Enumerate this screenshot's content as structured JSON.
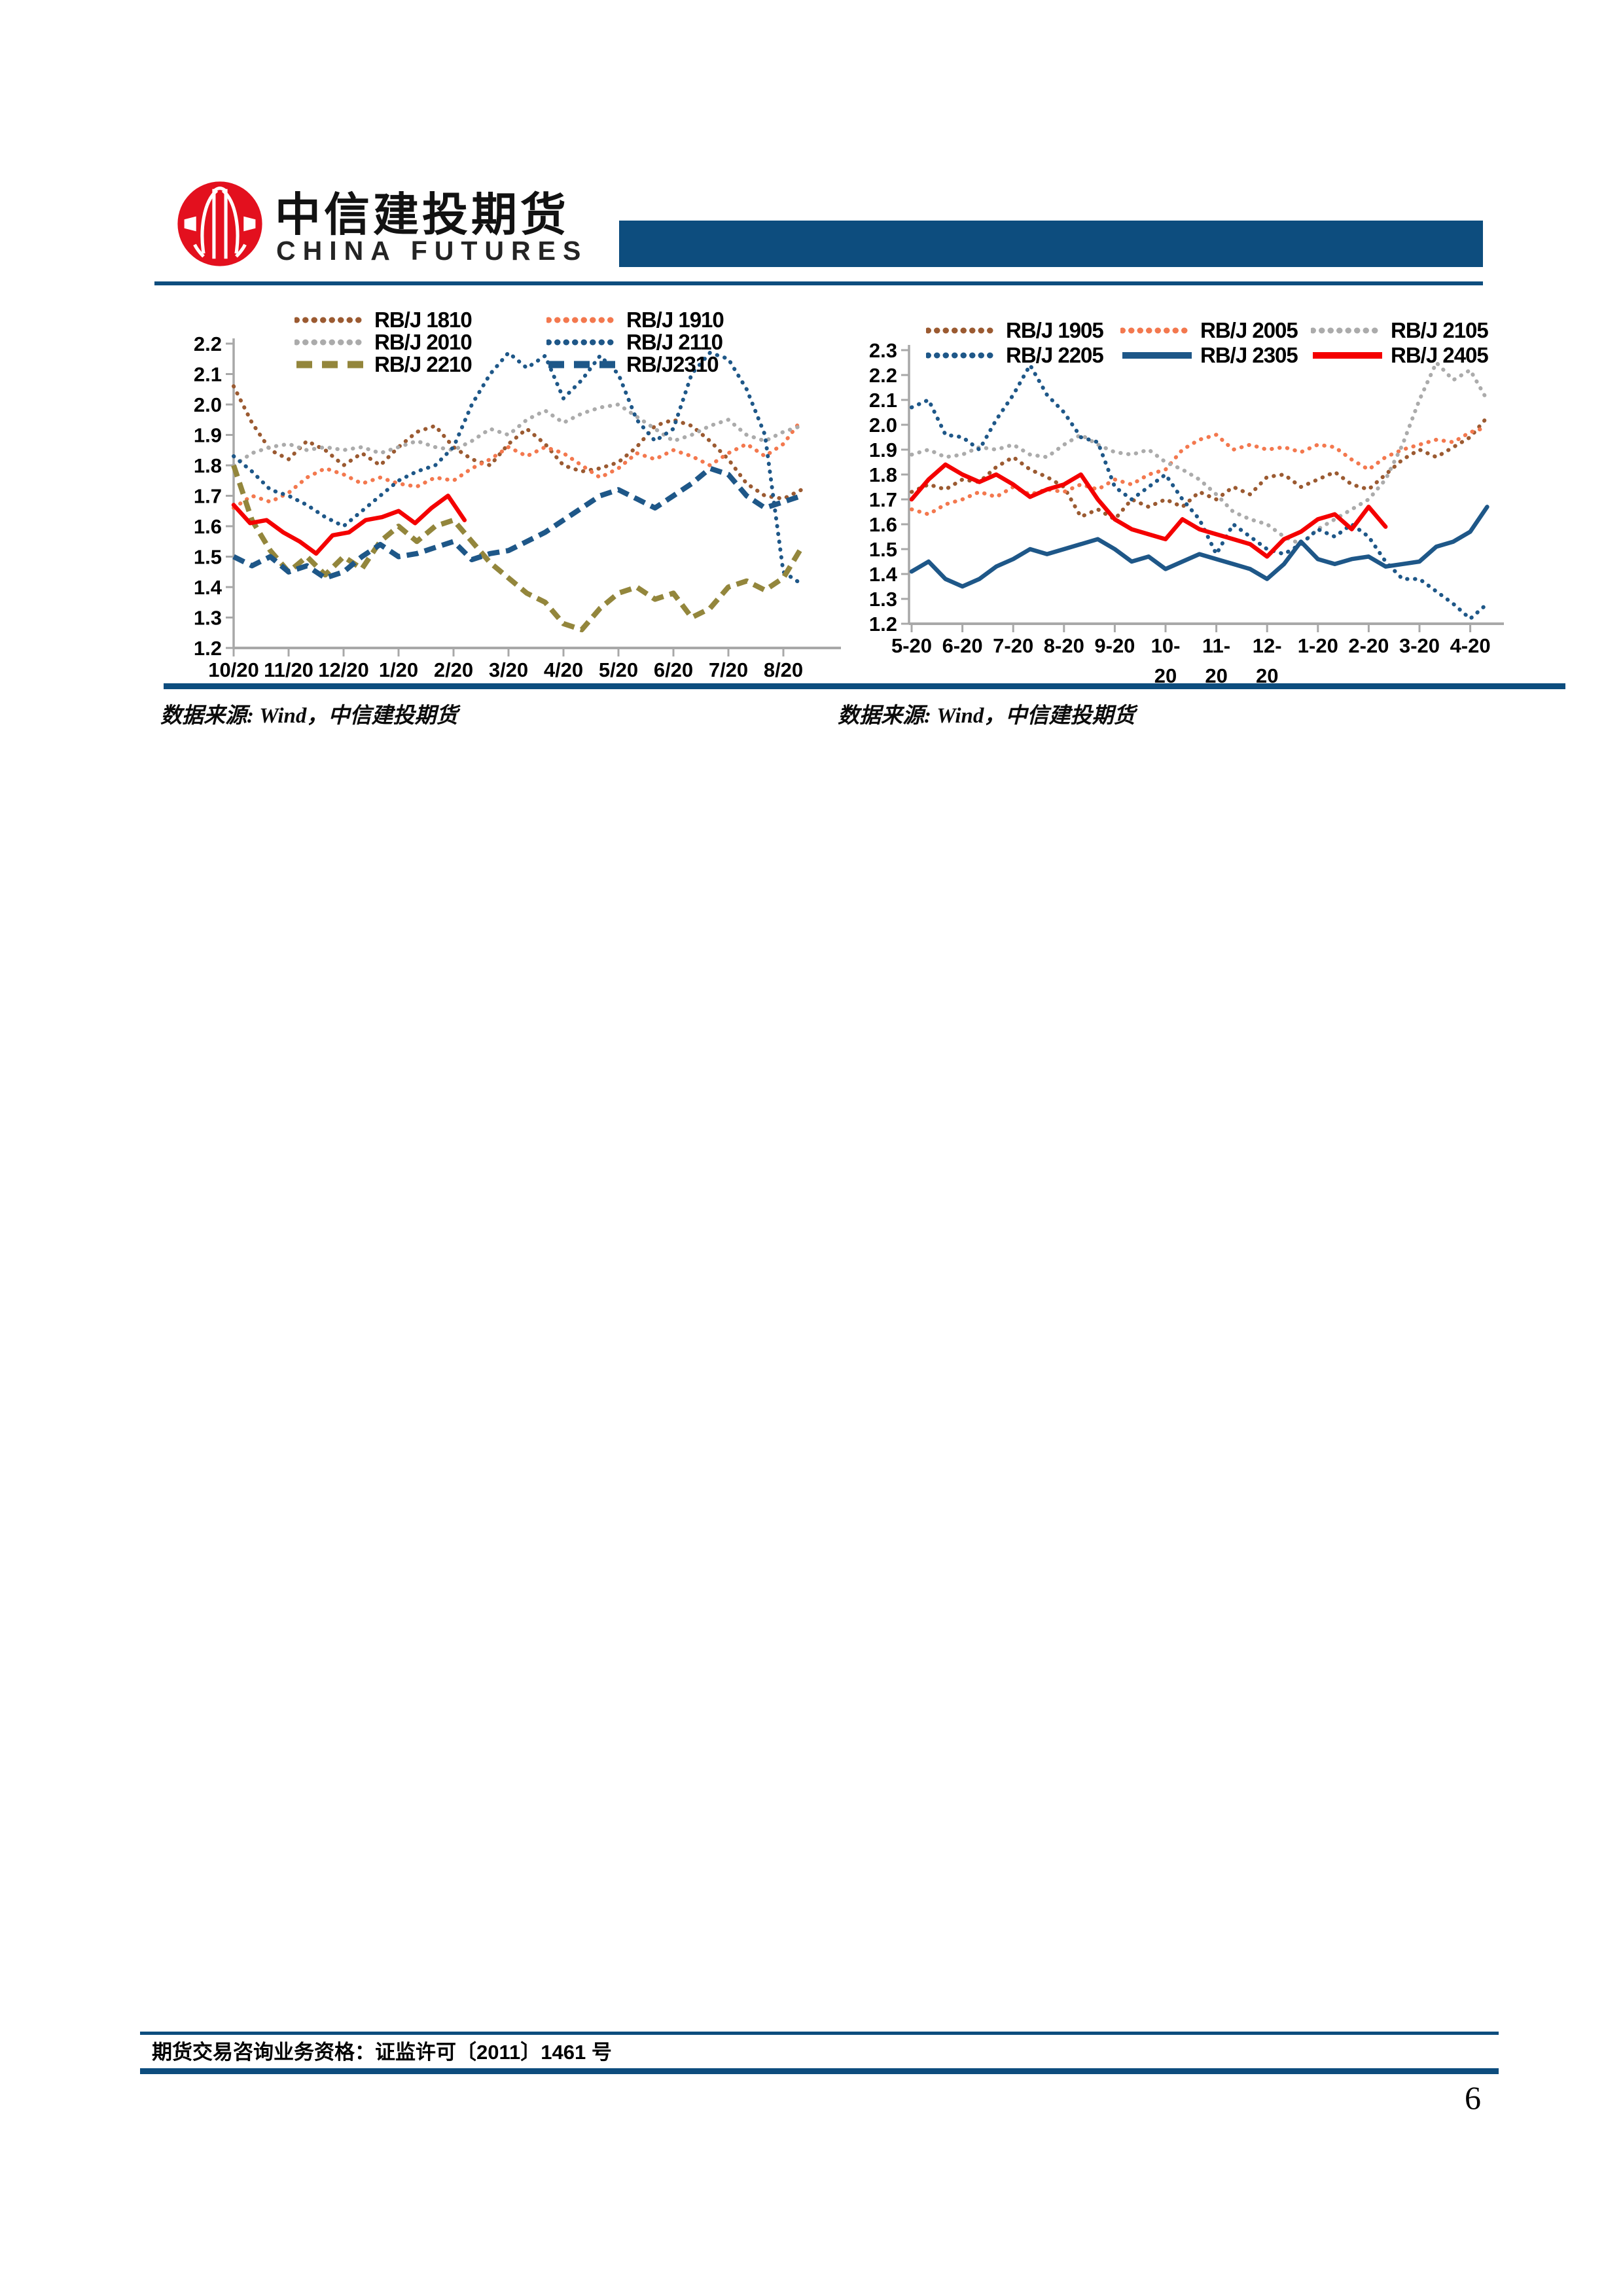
{
  "header": {
    "logo_cn": "中信建投期货",
    "logo_en": "CHINA FUTURES"
  },
  "colors": {
    "accent_blue": "#0d4d7e",
    "logo_red": "#e3101e",
    "axis_gray": "#a8a8a8",
    "series_brown": "#9b5a31",
    "series_coral": "#f3784e",
    "series_gray": "#ababab",
    "series_blue": "#1e5788",
    "series_olive": "#93863c",
    "series_red": "#f40000"
  },
  "chart_data": [
    {
      "type": "line",
      "title": "",
      "ylim": [
        1.2,
        2.2
      ],
      "y_ticks": [
        "2.2",
        "2.1",
        "2.0",
        "1.9",
        "1.8",
        "1.7",
        "1.6",
        "1.5",
        "1.4",
        "1.3",
        "1.2"
      ],
      "x_tick_labels": [
        [
          "10/20"
        ],
        [
          "11/20"
        ],
        [
          "12/20"
        ],
        [
          "1/20"
        ],
        [
          "2/20"
        ],
        [
          "3/20"
        ],
        [
          "4/20"
        ],
        [
          "5/20"
        ],
        [
          "6/20"
        ],
        [
          "7/20"
        ],
        [
          "8/20"
        ]
      ],
      "legend": [
        {
          "label": "RB/J 1810",
          "series": 0
        },
        {
          "label": "RB/J 1910",
          "series": 1
        },
        {
          "label": "RB/J 2010",
          "series": 2
        },
        {
          "label": "RB/J 2110",
          "series": 3
        },
        {
          "label": "RB/J 2210",
          "series": 4
        },
        {
          "label": "RB/J2310",
          "series": 5
        }
      ],
      "source": "数据来源: Wind，中信建投期货",
      "series": [
        {
          "name": "RB/J 1810",
          "color": "#9b5a31",
          "style": "dotted",
          "x_start": 0,
          "x_step": 0.3333,
          "values": [
            2.06,
            1.94,
            1.85,
            1.82,
            1.88,
            1.85,
            1.8,
            1.84,
            1.8,
            1.86,
            1.91,
            1.93,
            1.86,
            1.82,
            1.8,
            1.87,
            1.92,
            1.87,
            1.8,
            1.78,
            1.79,
            1.81,
            1.86,
            1.93,
            1.95,
            1.93,
            1.88,
            1.82,
            1.74,
            1.7,
            1.69,
            1.72
          ]
        },
        {
          "name": "RB/J 1910",
          "color": "#f3784e",
          "style": "dotted",
          "x_start": 0,
          "x_step": 0.3333,
          "values": [
            1.66,
            1.7,
            1.68,
            1.71,
            1.76,
            1.79,
            1.77,
            1.74,
            1.76,
            1.74,
            1.73,
            1.76,
            1.75,
            1.79,
            1.82,
            1.86,
            1.83,
            1.86,
            1.84,
            1.8,
            1.76,
            1.79,
            1.84,
            1.82,
            1.85,
            1.83,
            1.8,
            1.84,
            1.87,
            1.83,
            1.87,
            1.95
          ]
        },
        {
          "name": "RB/J 2010",
          "color": "#ababab",
          "style": "dotted",
          "x_start": 0,
          "x_step": 0.3333,
          "values": [
            1.8,
            1.84,
            1.86,
            1.87,
            1.85,
            1.86,
            1.85,
            1.86,
            1.84,
            1.86,
            1.88,
            1.86,
            1.85,
            1.88,
            1.92,
            1.9,
            1.95,
            1.98,
            1.94,
            1.97,
            1.99,
            2.0,
            1.96,
            1.92,
            1.88,
            1.9,
            1.93,
            1.95,
            1.9,
            1.88,
            1.91,
            1.93
          ]
        },
        {
          "name": "RB/J 2110",
          "color": "#1e5788",
          "style": "dotted",
          "x_start": 0,
          "x_step": 0.3333,
          "values": [
            1.83,
            1.78,
            1.72,
            1.7,
            1.67,
            1.63,
            1.6,
            1.65,
            1.7,
            1.75,
            1.78,
            1.8,
            1.86,
            2.0,
            2.1,
            2.17,
            2.12,
            2.16,
            2.02,
            2.08,
            2.16,
            2.1,
            1.95,
            1.88,
            1.92,
            2.1,
            2.17,
            2.15,
            2.05,
            1.9,
            1.45,
            1.41
          ]
        },
        {
          "name": "RB/J 2210",
          "color": "#93863c",
          "style": "dashed",
          "x_start": 0,
          "x_step": 0.3333,
          "values": [
            1.8,
            1.62,
            1.52,
            1.45,
            1.5,
            1.44,
            1.5,
            1.46,
            1.55,
            1.6,
            1.55,
            1.6,
            1.62,
            1.55,
            1.48,
            1.43,
            1.38,
            1.35,
            1.28,
            1.26,
            1.33,
            1.38,
            1.4,
            1.36,
            1.38,
            1.3,
            1.33,
            1.4,
            1.42,
            1.39,
            1.43,
            1.53
          ]
        },
        {
          "name": "RB/J2310",
          "color": "#1e5788",
          "style": "dashed",
          "x_start": 0,
          "x_step": 0.3333,
          "values": [
            1.5,
            1.47,
            1.5,
            1.45,
            1.47,
            1.43,
            1.45,
            1.5,
            1.54,
            1.5,
            1.51,
            1.53,
            1.55,
            1.49,
            1.51,
            1.52,
            1.55,
            1.58,
            1.62,
            1.66,
            1.7,
            1.72,
            1.69,
            1.66,
            1.7,
            1.74,
            1.79,
            1.77,
            1.7,
            1.66,
            1.68,
            1.7
          ]
        },
        {
          "name": "",
          "color": "#f40000",
          "style": "solid",
          "x_start": 0,
          "x_step": 0.3,
          "values": [
            1.67,
            1.61,
            1.62,
            1.58,
            1.55,
            1.51,
            1.57,
            1.58,
            1.62,
            1.63,
            1.65,
            1.61,
            1.66,
            1.7,
            1.62
          ]
        }
      ]
    },
    {
      "type": "line",
      "title": "",
      "ylim": [
        1.2,
        2.3
      ],
      "y_ticks": [
        "2.3",
        "2.2",
        "2.1",
        "2.0",
        "1.9",
        "1.8",
        "1.7",
        "1.6",
        "1.5",
        "1.4",
        "1.3",
        "1.2"
      ],
      "x_tick_labels": [
        [
          "5-20"
        ],
        [
          "6-20"
        ],
        [
          "7-20"
        ],
        [
          "8-20"
        ],
        [
          "9-20"
        ],
        [
          "10-",
          "20"
        ],
        [
          "11-",
          "20"
        ],
        [
          "12-",
          "20"
        ],
        [
          "1-20"
        ],
        [
          "2-20"
        ],
        [
          "3-20"
        ],
        [
          "4-20"
        ]
      ],
      "legend": [
        {
          "label": "RB/J 1905",
          "series": 0
        },
        {
          "label": "RB/J 2005",
          "series": 1
        },
        {
          "label": "RB/J 2105",
          "series": 2
        },
        {
          "label": "RB/J 2205",
          "series": 3
        },
        {
          "label": "RB/J 2305",
          "series": 4
        },
        {
          "label": "RB/J 2405",
          "series": 5
        }
      ],
      "source": "数据来源: Wind，中信建投期货",
      "series": [
        {
          "name": "RB/J 1905",
          "color": "#9b5a31",
          "style": "dotted",
          "x_start": 0,
          "x_step": 0.3333,
          "values": [
            1.73,
            1.76,
            1.74,
            1.78,
            1.77,
            1.83,
            1.87,
            1.82,
            1.79,
            1.75,
            1.63,
            1.66,
            1.62,
            1.7,
            1.67,
            1.7,
            1.67,
            1.73,
            1.7,
            1.75,
            1.72,
            1.79,
            1.8,
            1.75,
            1.78,
            1.81,
            1.76,
            1.74,
            1.8,
            1.86,
            1.9,
            1.87,
            1.91,
            1.95,
            2.03
          ]
        },
        {
          "name": "RB/J 2005",
          "color": "#f3784e",
          "style": "dotted",
          "x_start": 0,
          "x_step": 0.3333,
          "values": [
            1.66,
            1.64,
            1.68,
            1.7,
            1.73,
            1.71,
            1.75,
            1.72,
            1.74,
            1.73,
            1.76,
            1.74,
            1.78,
            1.76,
            1.8,
            1.82,
            1.9,
            1.94,
            1.96,
            1.9,
            1.92,
            1.9,
            1.91,
            1.89,
            1.92,
            1.91,
            1.86,
            1.82,
            1.87,
            1.9,
            1.92,
            1.94,
            1.93,
            1.97,
            1.99
          ]
        },
        {
          "name": "RB/J 2105",
          "color": "#ababab",
          "style": "dotted",
          "x_start": 0,
          "x_step": 0.3333,
          "values": [
            1.88,
            1.9,
            1.87,
            1.88,
            1.91,
            1.9,
            1.92,
            1.88,
            1.87,
            1.92,
            1.96,
            1.92,
            1.89,
            1.88,
            1.9,
            1.85,
            1.82,
            1.78,
            1.72,
            1.65,
            1.62,
            1.6,
            1.55,
            1.52,
            1.58,
            1.62,
            1.66,
            1.7,
            1.78,
            1.92,
            2.1,
            2.25,
            2.18,
            2.22,
            2.1
          ]
        },
        {
          "name": "RB/J 2205",
          "color": "#1e5788",
          "style": "dotted",
          "x_start": 0,
          "x_step": 0.3333,
          "values": [
            2.07,
            2.1,
            1.96,
            1.95,
            1.9,
            2.02,
            2.12,
            2.24,
            2.12,
            2.05,
            1.95,
            1.93,
            1.75,
            1.7,
            1.75,
            1.8,
            1.7,
            1.62,
            1.48,
            1.6,
            1.55,
            1.5,
            1.48,
            1.52,
            1.58,
            1.55,
            1.6,
            1.55,
            1.45,
            1.38,
            1.38,
            1.33,
            1.28,
            1.22,
            1.28
          ]
        },
        {
          "name": "RB/J 2305",
          "color": "#1e5788",
          "style": "solid",
          "x_start": 0,
          "x_step": 0.3333,
          "values": [
            1.41,
            1.45,
            1.38,
            1.35,
            1.38,
            1.43,
            1.46,
            1.5,
            1.48,
            1.5,
            1.52,
            1.54,
            1.5,
            1.45,
            1.47,
            1.42,
            1.45,
            1.48,
            1.46,
            1.44,
            1.42,
            1.38,
            1.44,
            1.53,
            1.46,
            1.44,
            1.46,
            1.47,
            1.43,
            1.44,
            1.45,
            1.51,
            1.53,
            1.57,
            1.67
          ]
        },
        {
          "name": "RB/J 2405",
          "color": "#f40000",
          "style": "solid",
          "x_start": 0,
          "x_step": 0.3333,
          "values": [
            1.7,
            1.78,
            1.84,
            1.8,
            1.77,
            1.8,
            1.76,
            1.71,
            1.74,
            1.76,
            1.8,
            1.7,
            1.62,
            1.58,
            1.56,
            1.54,
            1.62,
            1.58,
            1.56,
            1.54,
            1.52,
            1.47,
            1.54,
            1.57,
            1.62,
            1.64,
            1.58,
            1.67,
            1.59
          ]
        }
      ]
    }
  ],
  "footer": {
    "license": "期货交易咨询业务资格：证监许可〔2011〕1461 号",
    "page_number": "6"
  }
}
